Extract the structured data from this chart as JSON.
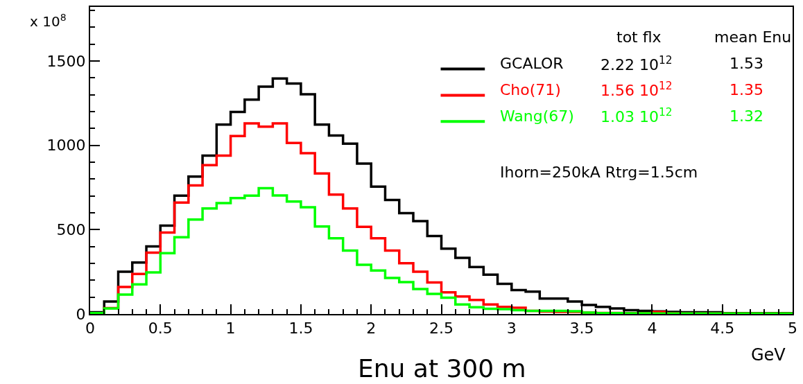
{
  "chart_data": {
    "type": "histogram",
    "title": "Enu at 300 m",
    "xlabel": "GeV",
    "bins": [
      0,
      0.1,
      0.2,
      0.3,
      0.4,
      0.5,
      0.6,
      0.7,
      0.8,
      0.9,
      1.0,
      1.1,
      1.2,
      1.3,
      1.4,
      1.5,
      1.6,
      1.7,
      1.8,
      1.9,
      2.0,
      2.1,
      2.2,
      2.3,
      2.4,
      2.5,
      2.6,
      2.7,
      2.8,
      2.9,
      3.0,
      3.1,
      3.2,
      3.3,
      3.4,
      3.5,
      3.6,
      3.7,
      3.8,
      3.9,
      4.0,
      4.1,
      4.2,
      4.3,
      4.4,
      4.5,
      4.6,
      4.7,
      4.8,
      4.9,
      5.0
    ],
    "series": [
      {
        "name": "GCALOR",
        "color": "#000000",
        "values": [
          10,
          74,
          251,
          305,
          401,
          524,
          701,
          814,
          939,
          1123,
          1198,
          1270,
          1348,
          1396,
          1366,
          1302,
          1123,
          1058,
          1010,
          892,
          755,
          676,
          598,
          551,
          462,
          387,
          333,
          278,
          233,
          179,
          142,
          132,
          91,
          91,
          74,
          53,
          42,
          33,
          23,
          19,
          15,
          12,
          10,
          10,
          10,
          5,
          5,
          5,
          5,
          5
        ]
      },
      {
        "name": "Cho(71)",
        "color": "#ff0000",
        "values": [
          5,
          35,
          160,
          237,
          364,
          483,
          660,
          762,
          882,
          939,
          1055,
          1130,
          1110,
          1130,
          1014,
          953,
          833,
          708,
          626,
          517,
          449,
          376,
          301,
          251,
          187,
          128,
          104,
          83,
          56,
          42,
          37,
          18,
          14,
          12,
          12,
          8,
          6,
          6,
          5,
          5,
          12,
          4,
          3,
          3,
          3,
          3,
          3,
          3,
          3,
          3
        ]
      },
      {
        "name": "Wang(67)",
        "color": "#00ff00",
        "values": [
          5,
          33,
          115,
          176,
          247,
          360,
          455,
          560,
          626,
          657,
          687,
          701,
          746,
          703,
          667,
          633,
          519,
          449,
          376,
          292,
          258,
          214,
          189,
          148,
          119,
          97,
          56,
          40,
          31,
          29,
          23,
          19,
          19,
          19,
          16,
          8,
          5,
          5,
          4,
          4,
          3,
          3,
          3,
          3,
          3,
          3,
          3,
          3,
          3,
          3
        ]
      }
    ],
    "annotations": [
      "x 10$^{8}$",
      "tot flx",
      "mean Enu",
      "2.22 10$^{12}$",
      "1.53",
      "1.56 10$^{12}$",
      "1.35",
      "1.03 10$^{12}$",
      "1.32",
      "Ihorn=250kA Rtrg=1.5cm"
    ],
    "xlim": [
      0,
      5
    ],
    "xticks": [
      0,
      0.5,
      1,
      1.5,
      2,
      2.5,
      3,
      3.5,
      4,
      4.5,
      5
    ],
    "ylim": [
      0,
      1820
    ],
    "yticks": [
      0,
      500,
      1000,
      1500
    ],
    "legend": "top right",
    "line_style": "solid"
  }
}
